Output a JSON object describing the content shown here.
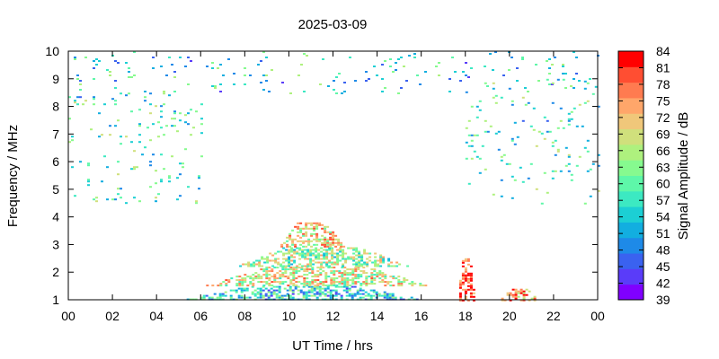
{
  "chart_data": {
    "type": "heatmap",
    "title": "2025-03-09",
    "xlabel": "UT Time / hrs",
    "ylabel": "Frequency / MHz",
    "colorbar_label": "Signal Amplitude / dB",
    "x_ticks": [
      "00",
      "02",
      "04",
      "06",
      "08",
      "10",
      "12",
      "14",
      "16",
      "18",
      "20",
      "22",
      "00"
    ],
    "xlim": [
      0,
      24
    ],
    "y_ticks": [
      1,
      2,
      3,
      4,
      5,
      6,
      7,
      8,
      9,
      10
    ],
    "ylim": [
      1,
      10
    ],
    "colorbar_ticks": [
      84,
      81,
      78,
      75,
      72,
      69,
      66,
      63,
      60,
      57,
      54,
      51,
      48,
      45,
      42,
      39
    ],
    "zlim": [
      39,
      84
    ],
    "colorbar_colors": [
      "#8000ff",
      "#5a3cf9",
      "#3a62f0",
      "#1e8ae8",
      "#12aee0",
      "#1ccfd4",
      "#3ce9c2",
      "#5ef7a9",
      "#86fa8f",
      "#aef17e",
      "#d0e07c",
      "#f0c77a",
      "#ffa66a",
      "#ff7b50",
      "#ff4e32",
      "#ff0000"
    ],
    "grid": false,
    "regions": [
      {
        "name": "daytime-band-low",
        "x": [
          5.0,
          16.2
        ],
        "y": [
          1.0,
          1.5
        ],
        "level": 55
      },
      {
        "name": "daytime-band-mid",
        "x": [
          6.0,
          16.5
        ],
        "y": [
          1.5,
          2.2
        ],
        "level": 68
      },
      {
        "name": "daytime-band-upper",
        "x": [
          7.5,
          15.5
        ],
        "y": [
          2.2,
          2.9
        ],
        "level": 63
      },
      {
        "name": "daytime-peak",
        "x": [
          9.5,
          12.5
        ],
        "y": [
          2.9,
          3.8
        ],
        "level": 70
      },
      {
        "name": "evening-burst",
        "x": [
          17.6,
          18.4
        ],
        "y": [
          1.0,
          2.5
        ],
        "level": 82
      },
      {
        "name": "night-patch",
        "x": [
          19.5,
          21.3
        ],
        "y": [
          1.0,
          1.4
        ],
        "level": 76
      },
      {
        "name": "top-noise",
        "x": [
          0.0,
          24.0
        ],
        "y": [
          8.5,
          10.0
        ],
        "level": 55
      },
      {
        "name": "left-noise",
        "x": [
          0.0,
          6.0
        ],
        "y": [
          4.5,
          8.5
        ],
        "level": 58
      },
      {
        "name": "right-noise",
        "x": [
          18.0,
          24.0
        ],
        "y": [
          4.5,
          9.0
        ],
        "level": 58
      }
    ]
  }
}
